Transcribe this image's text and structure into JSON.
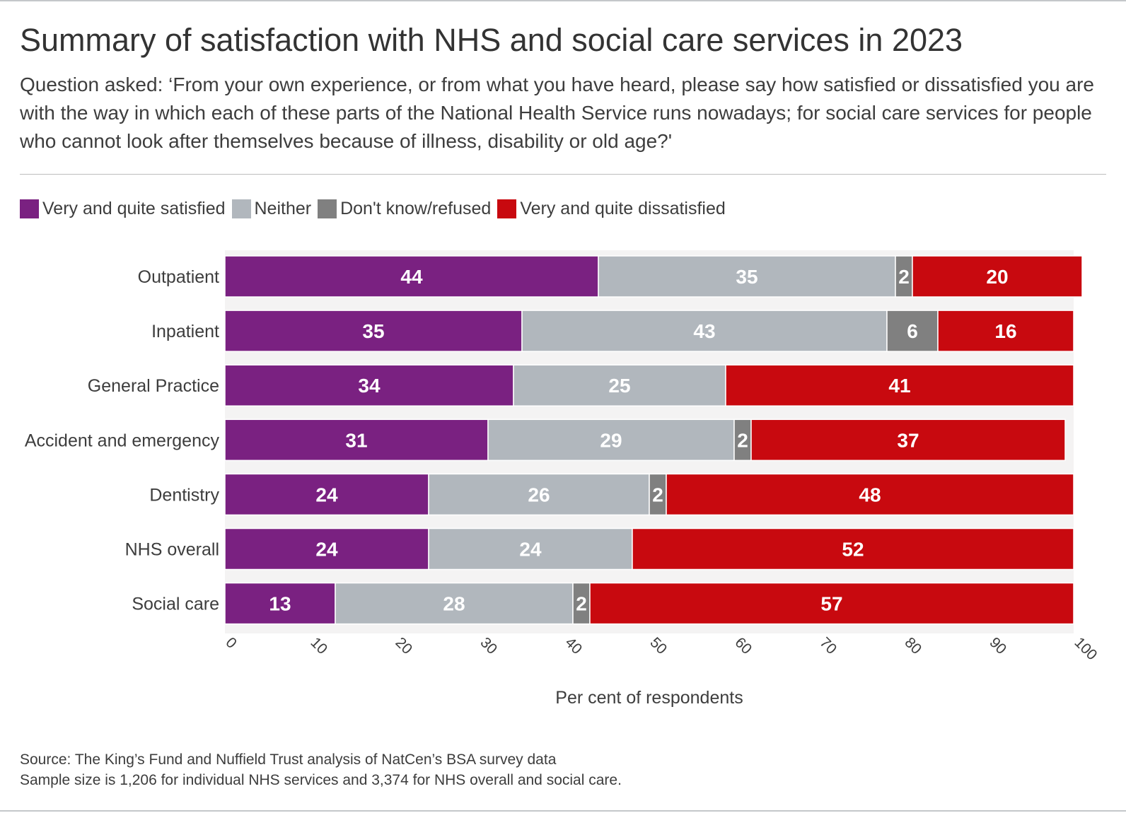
{
  "header": {
    "title": "Summary of satisfaction with NHS and social care services in 2023",
    "subtitle": "Question asked: ‘From your own experience, or from what you have heard, please say how satisfied or dissatisfied you are with the way in which each of these parts of the National Health Service runs nowadays; for social care services for people who cannot look after themselves because of illness, disability or old age?'"
  },
  "colors": {
    "satisfied": "#7a2181",
    "neither": "#b1b7bd",
    "dontknow": "#808080",
    "dissatisfied": "#c8090f",
    "plot_background": "#f4f3f3"
  },
  "chart_data": {
    "type": "bar",
    "orientation": "horizontal",
    "stacked": true,
    "categories": [
      "Outpatient",
      "Inpatient",
      "General Practice",
      "Accident and emergency",
      "Dentistry",
      "NHS overall",
      "Social care"
    ],
    "series": [
      {
        "name": "Very and quite satisfied",
        "key": "satisfied",
        "values": [
          44,
          35,
          34,
          31,
          24,
          24,
          13
        ]
      },
      {
        "name": "Neither",
        "key": "neither",
        "values": [
          35,
          43,
          25,
          29,
          26,
          24,
          28
        ]
      },
      {
        "name": "Don't know/refused",
        "key": "dontknow",
        "values": [
          2,
          6,
          0,
          2,
          2,
          0,
          2
        ]
      },
      {
        "name": "Very and quite dissatisfied",
        "key": "dissatisfied",
        "values": [
          20,
          16,
          41,
          37,
          48,
          52,
          57
        ]
      }
    ],
    "xlabel": "Per cent of respondents",
    "ylabel": "",
    "xlim": [
      0,
      100
    ],
    "xticks": [
      0,
      10,
      20,
      30,
      40,
      50,
      60,
      70,
      80,
      90,
      100
    ],
    "legend": "top-left"
  },
  "footer": {
    "source": "Source: The King’s Fund and Nuffield Trust analysis of NatCen’s BSA survey data",
    "note": "Sample size is 1,206 for individual NHS services and 3,374 for NHS overall and social care."
  }
}
